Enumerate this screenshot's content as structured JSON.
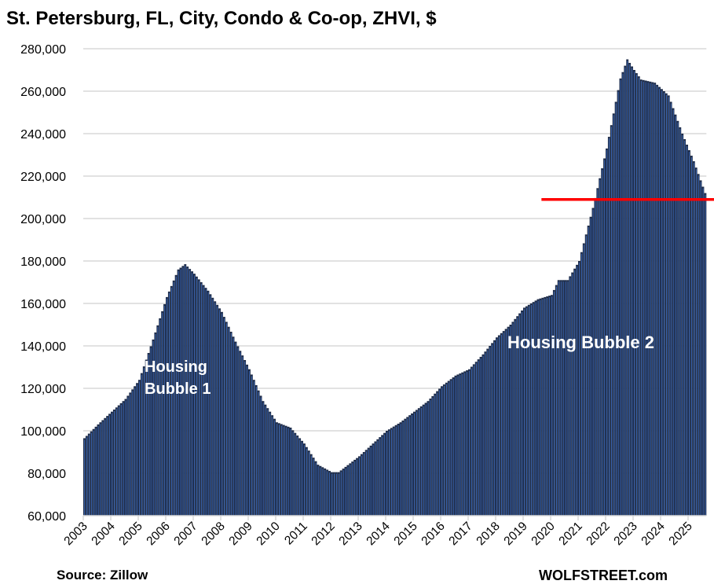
{
  "chart_data": {
    "type": "bar",
    "title": "St. Petersburg, FL, City, Condo & Co-op, ZHVI, $",
    "xlabel": "",
    "ylabel": "",
    "ylim": [
      60000,
      280000
    ],
    "yticks": [
      "60,000",
      "80,000",
      "100,000",
      "120,000",
      "140,000",
      "160,000",
      "180,000",
      "200,000",
      "220,000",
      "240,000",
      "260,000",
      "280,000"
    ],
    "ytick_values": [
      60000,
      80000,
      100000,
      120000,
      140000,
      160000,
      180000,
      200000,
      220000,
      240000,
      260000,
      280000
    ],
    "xticks": [
      "2003",
      "2004",
      "2005",
      "2006",
      "2007",
      "2008",
      "2009",
      "2010",
      "2011",
      "2012",
      "2013",
      "2014",
      "2015",
      "2016",
      "2017",
      "2018",
      "2019",
      "2020",
      "2021",
      "2022",
      "2023",
      "2024",
      "2025"
    ],
    "frequency": "monthly",
    "start": "2003-01",
    "end": "2025-08",
    "grid": true,
    "series": [
      {
        "name": "Condo & Co-op ZHVI",
        "color": "#1f2d4a",
        "edge_color": "#3a66b3",
        "points": [
          [
            "2003-01",
            96500
          ],
          [
            "2003-07",
            103000
          ],
          [
            "2004-01",
            109000
          ],
          [
            "2004-07",
            115000
          ],
          [
            "2005-01",
            124000
          ],
          [
            "2005-07",
            143000
          ],
          [
            "2006-01",
            163000
          ],
          [
            "2006-06",
            176000
          ],
          [
            "2006-09",
            178500
          ],
          [
            "2007-01",
            174000
          ],
          [
            "2007-07",
            166000
          ],
          [
            "2008-01",
            156000
          ],
          [
            "2008-07",
            142000
          ],
          [
            "2009-01",
            129000
          ],
          [
            "2009-07",
            114000
          ],
          [
            "2010-01",
            104000
          ],
          [
            "2010-07",
            101500
          ],
          [
            "2011-01",
            94000
          ],
          [
            "2011-07",
            84000
          ],
          [
            "2012-01",
            80500
          ],
          [
            "2012-04",
            80500
          ],
          [
            "2012-07",
            83000
          ],
          [
            "2013-01",
            88000
          ],
          [
            "2013-07",
            94000
          ],
          [
            "2014-01",
            100000
          ],
          [
            "2014-07",
            104000
          ],
          [
            "2015-01",
            109000
          ],
          [
            "2015-07",
            114000
          ],
          [
            "2016-01",
            121000
          ],
          [
            "2016-07",
            126000
          ],
          [
            "2017-01",
            129000
          ],
          [
            "2017-07",
            136000
          ],
          [
            "2018-01",
            144000
          ],
          [
            "2018-07",
            150000
          ],
          [
            "2019-01",
            158000
          ],
          [
            "2019-07",
            162000
          ],
          [
            "2020-01",
            164000
          ],
          [
            "2020-04",
            171000
          ],
          [
            "2020-08",
            171000
          ],
          [
            "2021-01",
            180000
          ],
          [
            "2021-07",
            205000
          ],
          [
            "2022-01",
            233000
          ],
          [
            "2022-07",
            266000
          ],
          [
            "2022-10",
            275000
          ],
          [
            "2023-01",
            270000
          ],
          [
            "2023-04",
            265500
          ],
          [
            "2023-10",
            264000
          ],
          [
            "2024-04",
            258000
          ],
          [
            "2024-10",
            240000
          ],
          [
            "2025-03",
            227000
          ],
          [
            "2025-08",
            212000
          ]
        ]
      }
    ],
    "reference_line": {
      "value": 209000,
      "from": "2019-09",
      "color": "#ff0000"
    },
    "annotations": [
      {
        "lines": [
          "Housing",
          "Bubble 1"
        ],
        "near": "2005-2007"
      },
      {
        "lines": [
          "Housing Bubble 2"
        ],
        "near": "2018-2022"
      }
    ]
  },
  "footer": {
    "source": "Source: Zillow",
    "brand": "WOLFSTREET.com"
  }
}
